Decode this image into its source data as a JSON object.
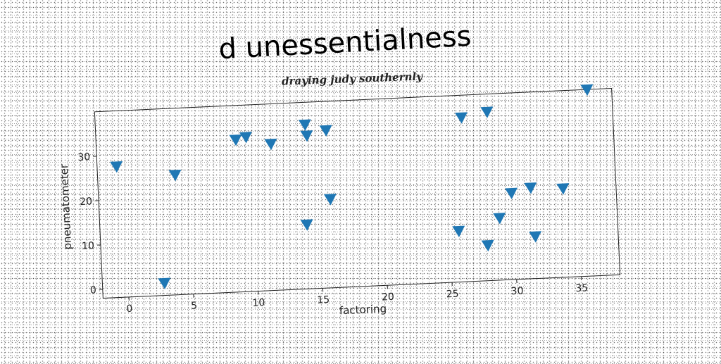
{
  "chart_data": {
    "type": "scatter",
    "title": "d unessentialness",
    "subtitle": "draying judy southernly",
    "xlabel": "factoring",
    "ylabel": "pneumatometer",
    "xlim": [
      -2,
      38
    ],
    "ylim": [
      -2,
      40
    ],
    "xticks": [
      0,
      5,
      10,
      15,
      20,
      25,
      30,
      35
    ],
    "yticks": [
      0,
      10,
      20,
      30
    ],
    "marker": "triangle-down",
    "color": "#1f77b4",
    "grid": false,
    "legend": false,
    "series": [
      {
        "points": [
          {
            "x": -0.5,
            "y": 27.5
          },
          {
            "x": 2.8,
            "y": 0.8
          },
          {
            "x": 4.0,
            "y": 25.0
          },
          {
            "x": 8.8,
            "y": 32.3
          },
          {
            "x": 9.6,
            "y": 32.8
          },
          {
            "x": 11.5,
            "y": 31.0
          },
          {
            "x": 14.0,
            "y": 12.5
          },
          {
            "x": 14.2,
            "y": 35.0
          },
          {
            "x": 14.3,
            "y": 32.5
          },
          {
            "x": 15.8,
            "y": 33.5
          },
          {
            "x": 15.9,
            "y": 18.0
          },
          {
            "x": 25.7,
            "y": 9.5
          },
          {
            "x": 26.3,
            "y": 35.0
          },
          {
            "x": 27.9,
            "y": 6.0
          },
          {
            "x": 28.3,
            "y": 36.0
          },
          {
            "x": 28.9,
            "y": 12.0
          },
          {
            "x": 29.9,
            "y": 17.5
          },
          {
            "x": 31.4,
            "y": 18.5
          },
          {
            "x": 31.6,
            "y": 7.5
          },
          {
            "x": 33.9,
            "y": 18.0
          },
          {
            "x": 36.1,
            "y": 40.0
          }
        ]
      }
    ]
  }
}
